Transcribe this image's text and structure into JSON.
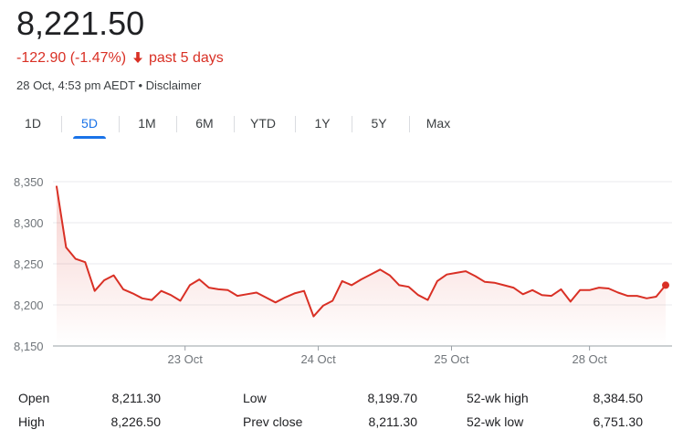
{
  "quote": {
    "price": "8,221.50",
    "change": "-122.90 (-1.47%)",
    "period": "past 5 days",
    "timestamp": "28 Oct, 4:53 pm AEDT",
    "separator": "•",
    "disclaimer": "Disclaimer",
    "change_color": "#d93025"
  },
  "tabs": [
    {
      "label": "1D",
      "active": false
    },
    {
      "label": "5D",
      "active": true
    },
    {
      "label": "1M",
      "active": false
    },
    {
      "label": "6M",
      "active": false
    },
    {
      "label": "YTD",
      "active": false
    },
    {
      "label": "1Y",
      "active": false
    },
    {
      "label": "5Y",
      "active": false
    },
    {
      "label": "Max",
      "active": false
    }
  ],
  "chart_data": {
    "type": "line",
    "ylim": [
      8150,
      8350
    ],
    "yticks": [
      "8,350",
      "8,300",
      "8,250",
      "8,200",
      "8,150"
    ],
    "ytick_values": [
      8350,
      8300,
      8250,
      8200,
      8150
    ],
    "xtick_labels": [
      "23 Oct",
      "24 Oct",
      "25 Oct",
      "28 Oct"
    ],
    "xtick_index": [
      13.5,
      27.5,
      41.5,
      56
    ],
    "grid": true,
    "line_color": "#d93025",
    "values": [
      8344,
      8270,
      8256,
      8252,
      8217,
      8230,
      8236,
      8219,
      8214,
      8208,
      8206,
      8217,
      8212,
      8205,
      8224,
      8231,
      8221,
      8219,
      8218,
      8211,
      8213,
      8215,
      8209,
      8203,
      8209,
      8214,
      8217,
      8186,
      8199,
      8205,
      8229,
      8224,
      8231,
      8237,
      8243,
      8236,
      8224,
      8222,
      8212,
      8206,
      8229,
      8237,
      8239,
      8241,
      8235,
      8228,
      8227,
      8224,
      8221,
      8213,
      8218,
      8212,
      8211,
      8219,
      8204,
      8218,
      8218,
      8221,
      8220,
      8215,
      8211,
      8211,
      8208,
      8210,
      8224
    ]
  },
  "stats": [
    {
      "label": "Open",
      "value": "8,211.30"
    },
    {
      "label": "High",
      "value": "8,226.50"
    },
    {
      "label": "Low",
      "value": "8,199.70"
    },
    {
      "label": "Prev close",
      "value": "8,211.30"
    },
    {
      "label": "52-wk high",
      "value": "8,384.50"
    },
    {
      "label": "52-wk low",
      "value": "6,751.30"
    }
  ]
}
